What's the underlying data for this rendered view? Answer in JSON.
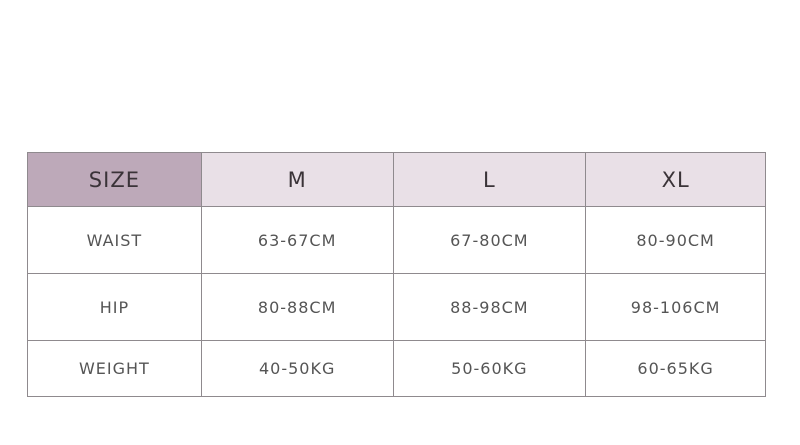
{
  "colors": {
    "label_header_bg": "#bda9b9",
    "header_bg": "#e9e0e7",
    "border": "#8f8a8e"
  },
  "table": {
    "headers": [
      "SIZE",
      "M",
      "L",
      "XL"
    ],
    "rows": [
      {
        "label": "WAIST",
        "values": [
          "63-67CM",
          "67-80CM",
          "80-90CM"
        ]
      },
      {
        "label": "HIP",
        "values": [
          "80-88CM",
          "88-98CM",
          "98-106CM"
        ]
      },
      {
        "label": "WEIGHT",
        "values": [
          "40-50KG",
          "50-60KG",
          "60-65KG"
        ]
      }
    ]
  }
}
